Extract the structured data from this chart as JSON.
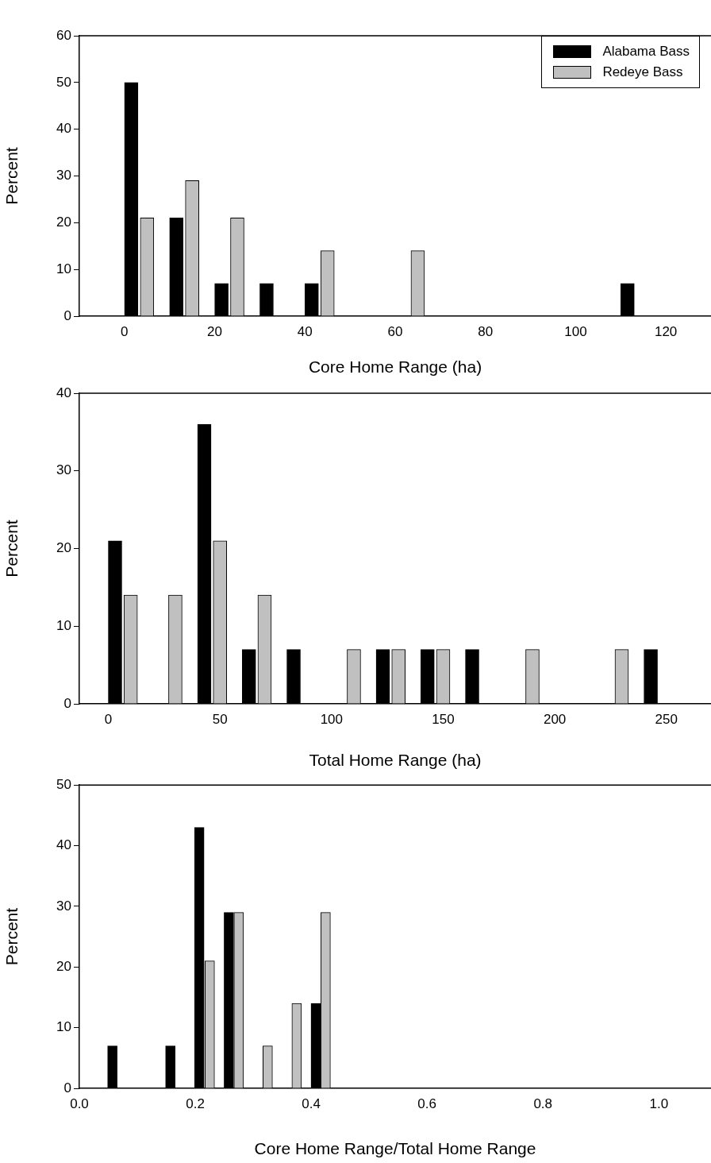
{
  "chart_data": [
    {
      "type": "bar",
      "xlabel": "Core Home Range (ha)",
      "ylabel": "Percent",
      "xlim": [
        -10,
        130
      ],
      "xticks": [
        0,
        20,
        40,
        60,
        80,
        100,
        120
      ],
      "ylim": [
        0,
        60
      ],
      "yticks": [
        0,
        10,
        20,
        30,
        40,
        50,
        60
      ],
      "legend": "top right",
      "series": [
        {
          "name": "Alabama Bass",
          "color": "#000000",
          "x": [
            1.5,
            11.5,
            21.5,
            31.5,
            41.5,
            111.5
          ],
          "values": [
            50,
            21,
            7,
            7,
            7,
            7
          ]
        },
        {
          "name": "Redeye Bass",
          "color": "#c0c0c0",
          "x": [
            5,
            15,
            25,
            45,
            65
          ],
          "values": [
            21,
            29,
            21,
            14,
            14
          ]
        }
      ]
    },
    {
      "type": "bar",
      "xlabel": "Total Home Range (ha)",
      "ylabel": "Percent",
      "xlim": [
        -13,
        270
      ],
      "xticks": [
        0,
        50,
        100,
        150,
        200,
        250
      ],
      "ylim": [
        0,
        40
      ],
      "yticks": [
        0,
        10,
        20,
        30,
        40
      ],
      "series": [
        {
          "color": "#000000",
          "x": [
            3,
            43,
            63,
            83,
            123,
            143,
            163,
            243
          ],
          "values": [
            21,
            36,
            7,
            7,
            7,
            7,
            7,
            7
          ]
        },
        {
          "color": "#c0c0c0",
          "x": [
            10,
            30,
            50,
            70,
            110,
            130,
            150,
            190,
            230
          ],
          "values": [
            14,
            14,
            21,
            14,
            7,
            7,
            7,
            7,
            7
          ]
        }
      ]
    },
    {
      "type": "bar",
      "xlabel": "Core Home Range/Total Home Range",
      "ylabel": "Percent",
      "xlim": [
        0,
        1.09
      ],
      "xticks": [
        {
          "value": 0,
          "label": "0.0"
        },
        0.2,
        0.4,
        0.6,
        0.8,
        {
          "value": 1,
          "label": "1.0"
        }
      ],
      "ylim": [
        0,
        50
      ],
      "yticks": [
        0,
        10,
        20,
        30,
        40,
        50
      ],
      "series": [
        {
          "color": "#000000",
          "x": [
            0.057,
            0.157,
            0.207,
            0.258,
            0.408
          ],
          "values": [
            7,
            7,
            43,
            29,
            14
          ]
        },
        {
          "color": "#c0c0c0",
          "x": [
            0.225,
            0.275,
            0.325,
            0.375,
            0.425
          ],
          "values": [
            21,
            29,
            7,
            14,
            29
          ]
        }
      ]
    }
  ]
}
